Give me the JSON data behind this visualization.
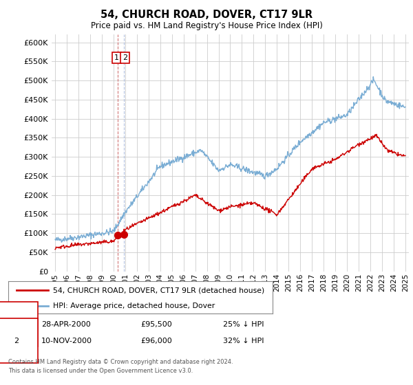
{
  "title": "54, CHURCH ROAD, DOVER, CT17 9LR",
  "subtitle": "Price paid vs. HM Land Registry's House Price Index (HPI)",
  "ylim": [
    0,
    600000
  ],
  "yticks": [
    0,
    50000,
    100000,
    150000,
    200000,
    250000,
    300000,
    350000,
    400000,
    450000,
    500000,
    550000,
    600000
  ],
  "line1_color": "#cc0000",
  "line2_color": "#7aadd4",
  "marker_color": "#cc0000",
  "vline1_color": "#cc6666",
  "vline2_color": "#aabbdd",
  "legend_line1": "54, CHURCH ROAD, DOVER, CT17 9LR (detached house)",
  "legend_line2": "HPI: Average price, detached house, Dover",
  "transaction1": {
    "label": "1",
    "date": "28-APR-2000",
    "price": "£95,500",
    "hpi": "25% ↓ HPI"
  },
  "transaction2": {
    "label": "2",
    "date": "10-NOV-2000",
    "price": "£96,000",
    "hpi": "32% ↓ HPI"
  },
  "footnote1": "Contains HM Land Registry data © Crown copyright and database right 2024.",
  "footnote2": "This data is licensed under the Open Government Licence v3.0.",
  "background_color": "#ffffff",
  "grid_color": "#cccccc",
  "box_color": "#cc0000"
}
